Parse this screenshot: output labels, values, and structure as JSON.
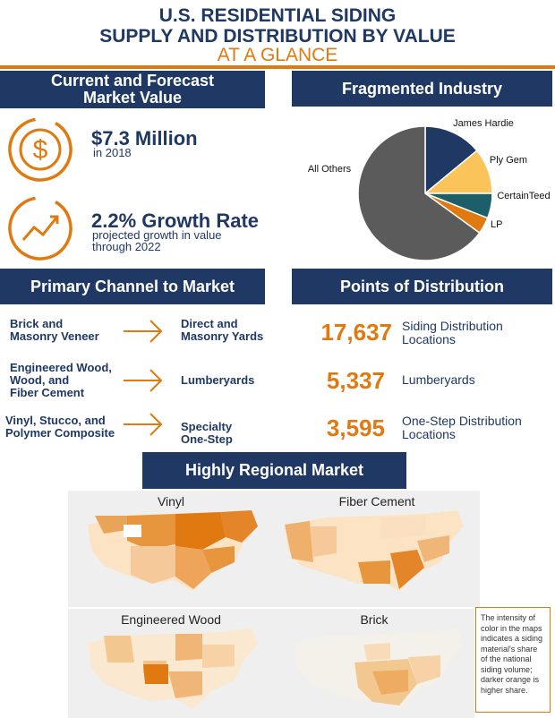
{
  "title": {
    "line1": "U.S. RESIDENTIAL SIDING",
    "line2": "SUPPLY AND DISTRIBUTION BY VALUE",
    "line3": "AT A GLANCE"
  },
  "market_value": {
    "header_line1": "Current and Forecast",
    "header_line2": "Market Value",
    "value": "$7.3 Million",
    "value_sub": "in 2018",
    "growth": "2.2% Growth Rate",
    "growth_sub1": "projected growth in value",
    "growth_sub2": "through 2022",
    "dollar_icon": "dollar-icon",
    "growth_icon": "growth-chart-icon"
  },
  "fragmented": {
    "header": "Fragmented Industry"
  },
  "chart_data": {
    "type": "pie",
    "title": "",
    "slices": [
      {
        "label": "James Hardie",
        "value": 14,
        "color": "#1f3864"
      },
      {
        "label": "Ply Gem",
        "value": 11,
        "color": "#fbc45a"
      },
      {
        "label": "CertainTeed",
        "value": 6,
        "color": "#1c5f6b"
      },
      {
        "label": "LP",
        "value": 4,
        "color": "#e07a10"
      },
      {
        "label": "All Others",
        "value": 65,
        "color": "#5b5b5b"
      }
    ]
  },
  "channel": {
    "header": "Primary Channel to Market",
    "rows": [
      {
        "from1": "Brick and",
        "from2": "Masonry Veneer",
        "from3": "",
        "to1": "Direct and",
        "to2": "Masonry Yards"
      },
      {
        "from1": "Engineered Wood,",
        "from2": "Wood, and",
        "from3": "Fiber Cement",
        "to1": "Lumberyards",
        "to2": ""
      },
      {
        "from1": "Vinyl, Stucco, and",
        "from2": "Polymer Composite",
        "from3": "",
        "to1": "Specialty",
        "to2": "One-Step"
      }
    ]
  },
  "distribution": {
    "header": "Points of Distribution",
    "rows": [
      {
        "number": "17,637",
        "label1": "Siding Distribution",
        "label2": "Locations"
      },
      {
        "number": "5,337",
        "label1": "Lumberyards",
        "label2": ""
      },
      {
        "number": "3,595",
        "label1": "One-Step Distribution",
        "label2": "Locations"
      }
    ]
  },
  "regional": {
    "header": "Highly Regional Market",
    "maps": [
      {
        "title": "Vinyl"
      },
      {
        "title": "Fiber Cement"
      },
      {
        "title": "Engineered Wood"
      },
      {
        "title": "Brick"
      }
    ],
    "note": "The intensity of color in the maps indicates a siding material's share of the national siding volume; darker orange is higher share."
  },
  "colors": {
    "navy": "#1f3864",
    "orange": "#e07a10"
  }
}
